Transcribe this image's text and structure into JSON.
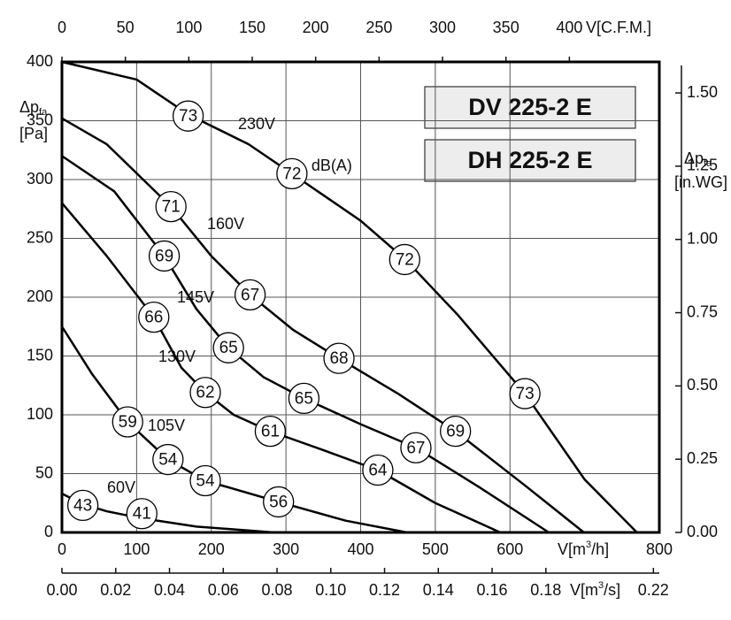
{
  "models": [
    "DV 225-2 E",
    "DH 225-2 E"
  ],
  "chart_data": {
    "type": "line",
    "x_label": {
      "main": "V[m",
      "sup": "3",
      "tail": "/h]"
    },
    "xlim": [
      0,
      800
    ],
    "xticks": [
      0,
      100,
      200,
      300,
      400,
      500,
      600,
      800
    ],
    "y_label": {
      "main": "Δp",
      "sub": "fa",
      "unit": "[Pa]"
    },
    "ylim": [
      0,
      400
    ],
    "yticks": [
      0,
      50,
      100,
      150,
      200,
      250,
      300,
      350,
      400
    ],
    "y2_label": {
      "main": "Δp",
      "sub": "fa",
      "unit": "[in.WG]"
    },
    "y2lim": [
      0,
      1.6059
    ],
    "y2ticks": [
      {
        "value": 0,
        "label": "0.00"
      },
      0.25,
      {
        "value": 0.5,
        "label": "0.50"
      },
      0.75,
      {
        "value": 1,
        "label": "1.00"
      },
      1.25,
      {
        "value": 1.5,
        "label": "1.50"
      }
    ],
    "x_top_label": "V[C.F.M.]",
    "x_top_lim": [
      0,
      470.9
    ],
    "x_top_ticks": [
      0,
      50,
      100,
      150,
      200,
      250,
      300,
      350,
      400
    ],
    "x_bottom2_label": {
      "main": "V[m",
      "sup": "3",
      "tail": "/s]"
    },
    "x_bottom2_lim": [
      0,
      0.2222
    ],
    "x_bottom2_ticks": [
      {
        "value": 0,
        "label": "0.00"
      },
      0.02,
      0.04,
      0.06,
      0.08,
      {
        "value": 0.1,
        "label": "0.10"
      },
      0.12,
      0.14,
      0.16,
      0.18,
      0.22
    ],
    "db_unit": "dB(A)",
    "grid": true,
    "series": [
      {
        "name": "230V",
        "color": "#000000",
        "x": [
          0,
          100,
          170,
          250,
          308,
          400,
          460,
          530,
          620,
          700,
          770
        ],
        "values": [
          400,
          385,
          355,
          330,
          305,
          265,
          232,
          185,
          118,
          45,
          0
        ],
        "db_labels": [
          {
            "x": 169,
            "y": 354,
            "value": 73
          },
          {
            "x": 308,
            "y": 305,
            "value": 72
          },
          {
            "x": 459,
            "y": 232,
            "value": 72
          },
          {
            "x": 620,
            "y": 118,
            "value": 73
          }
        ]
      },
      {
        "name": "160V",
        "color": "#000000",
        "x": [
          0,
          60,
          146,
          200,
          252,
          310,
          371,
          450,
          527,
          620,
          699
        ],
        "values": [
          352,
          330,
          277,
          235,
          202,
          172,
          148,
          118,
          86,
          40,
          0
        ],
        "db_labels": [
          {
            "x": 146,
            "y": 277,
            "value": 71
          },
          {
            "x": 252,
            "y": 202,
            "value": 67
          },
          {
            "x": 371,
            "y": 148,
            "value": 68
          },
          {
            "x": 527,
            "y": 86,
            "value": 69
          }
        ]
      },
      {
        "name": "145V",
        "color": "#000000",
        "x": [
          0,
          70,
          137,
          180,
          223,
          270,
          324,
          400,
          474,
          560,
          652
        ],
        "values": [
          320,
          290,
          235,
          190,
          157,
          132,
          114,
          92,
          72,
          38,
          0
        ],
        "db_labels": [
          {
            "x": 137,
            "y": 235,
            "value": 69
          },
          {
            "x": 223,
            "y": 157,
            "value": 65
          },
          {
            "x": 324,
            "y": 114,
            "value": 65
          },
          {
            "x": 474,
            "y": 72,
            "value": 67
          }
        ]
      },
      {
        "name": "130V",
        "color": "#000000",
        "x": [
          0,
          60,
          123,
          160,
          192,
          230,
          279,
          350,
          423,
          500,
          587
        ],
        "values": [
          280,
          235,
          183,
          140,
          119,
          100,
          86,
          70,
          53,
          25,
          0
        ],
        "db_labels": [
          {
            "x": 123,
            "y": 183,
            "value": 66
          },
          {
            "x": 192,
            "y": 119,
            "value": 62
          },
          {
            "x": 279,
            "y": 86,
            "value": 61
          },
          {
            "x": 423,
            "y": 53,
            "value": 64
          }
        ]
      },
      {
        "name": "105V",
        "color": "#000000",
        "x": [
          0,
          40,
          88,
          142,
          192,
          290,
          380,
          462
        ],
        "values": [
          175,
          135,
          94,
          62,
          44,
          26,
          10,
          0
        ],
        "db_labels": [
          {
            "x": 88,
            "y": 94,
            "value": 59
          },
          {
            "x": 142,
            "y": 62,
            "value": 54
          },
          {
            "x": 192,
            "y": 44,
            "value": 54
          },
          {
            "x": 290,
            "y": 26,
            "value": 56
          }
        ]
      },
      {
        "name": "60V",
        "color": "#000000",
        "x": [
          0,
          28,
          60,
          107,
          180,
          284
        ],
        "values": [
          33,
          24,
          18,
          12,
          5,
          0
        ],
        "db_labels": [
          {
            "x": 28,
            "y": 23,
            "value": 43
          },
          {
            "x": 107,
            "y": 16,
            "value": 41
          }
        ]
      }
    ]
  }
}
